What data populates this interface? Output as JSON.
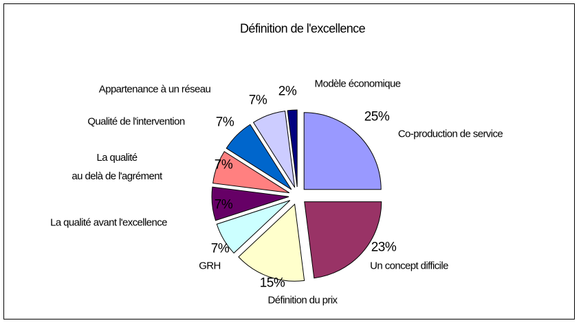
{
  "chart_data": {
    "type": "pie",
    "title": "Définition de l'excellence",
    "categories": [
      "Co-production de service",
      "Un concept difficile",
      "Définition du prix",
      "GRH",
      "La qualité avant l'excellence",
      "La qualité\nau delà de l'agrément",
      "Qualité de l'intervention",
      "Appartenance à un réseau",
      "Modèle économique"
    ],
    "values": [
      25,
      23,
      15,
      7,
      7,
      7,
      7,
      7,
      2
    ],
    "value_labels": [
      "25%",
      "23%",
      "15%",
      "7%",
      "7%",
      "7%",
      "7%",
      "7%",
      "2%"
    ],
    "colors": [
      "#9999ff",
      "#993366",
      "#ffffcc",
      "#ccffff",
      "#660066",
      "#ff8080",
      "#0066cc",
      "#ccccff",
      "#000080"
    ],
    "exploded": true
  }
}
